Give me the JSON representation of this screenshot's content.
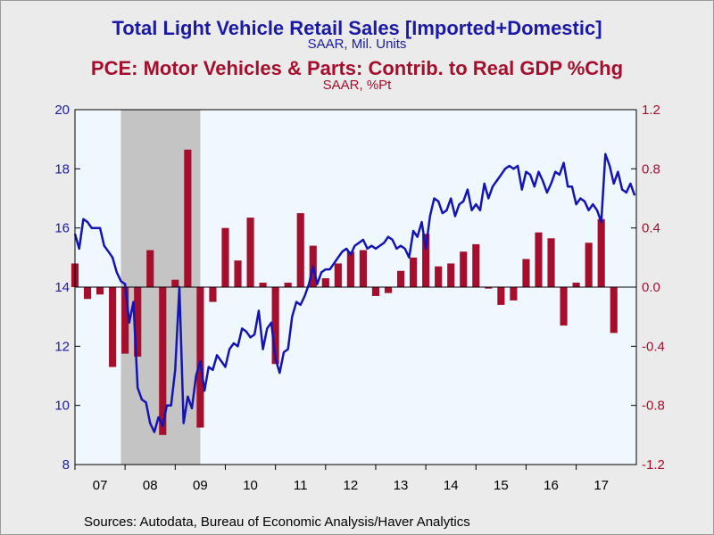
{
  "titles": {
    "line_title": "Total Light Vehicle Retail Sales [Imported+Domestic]",
    "line_subtitle": "SAAR, Mil. Units",
    "bar_title": "PCE: Motor Vehicles & Parts: Contrib. to Real GDP %Chg",
    "bar_subtitle": "SAAR, %Pt"
  },
  "source": "Sources:  Autodata, Bureau of Economic Analysis/Haver Analytics",
  "colors": {
    "line": "#1414b4",
    "bar": "#a50f2d",
    "recession": "#c4c4c4",
    "plot_bg": "#f0f8ff",
    "page_bg": "#ebebeb"
  },
  "chart_data": {
    "type": "bar+line",
    "x_labels": [
      "07",
      "08",
      "09",
      "10",
      "11",
      "12",
      "13",
      "14",
      "15",
      "16",
      "17"
    ],
    "x_range": [
      2007.0,
      2018.2
    ],
    "left_axis": {
      "ticks": [
        "20",
        "18",
        "16",
        "14",
        "12",
        "10",
        "8"
      ],
      "ylim": [
        8,
        20
      ]
    },
    "right_axis": {
      "ticks": [
        "1.2",
        "0.8",
        "0.4",
        "0.0",
        "-0.4",
        "-0.8",
        "-1.2"
      ],
      "ylim": [
        -1.2,
        1.2
      ]
    },
    "recession_shading": [
      2007.917,
      2009.5
    ],
    "bars": {
      "name": "PCE: Motor Vehicles & Parts: Contrib. to Real GDP %Chg",
      "axis": "right",
      "x": [
        2007.0,
        2007.25,
        2007.5,
        2007.75,
        2008.0,
        2008.25,
        2008.5,
        2008.75,
        2009.0,
        2009.25,
        2009.5,
        2009.75,
        2010.0,
        2010.25,
        2010.5,
        2010.75,
        2011.0,
        2011.25,
        2011.5,
        2011.75,
        2012.0,
        2012.25,
        2012.5,
        2012.75,
        2013.0,
        2013.25,
        2013.5,
        2013.75,
        2014.0,
        2014.25,
        2014.5,
        2014.75,
        2015.0,
        2015.25,
        2015.5,
        2015.75,
        2016.0,
        2016.25,
        2016.5,
        2016.75,
        2017.0,
        2017.25,
        2017.5,
        2017.75,
        2018.0
      ],
      "values": [
        0.16,
        -0.08,
        -0.05,
        -0.54,
        -0.45,
        -0.47,
        0.25,
        -1.0,
        0.05,
        0.93,
        -0.95,
        -0.1,
        0.4,
        0.18,
        0.47,
        0.03,
        -0.52,
        0.03,
        0.5,
        0.28,
        0.06,
        0.16,
        0.24,
        0.25,
        -0.06,
        -0.04,
        0.11,
        0.2,
        0.36,
        0.14,
        0.16,
        0.24,
        0.29,
        -0.01,
        -0.12,
        -0.09,
        0.19,
        0.37,
        0.33,
        -0.26,
        0.03,
        0.3,
        0.46,
        -0.31,
        0.0
      ]
    },
    "line": {
      "name": "Total Light Vehicle Retail Sales [Imported+Domestic]",
      "axis": "left",
      "x": [
        2007.0,
        2007.083,
        2007.167,
        2007.25,
        2007.333,
        2007.417,
        2007.5,
        2007.583,
        2007.667,
        2007.75,
        2007.833,
        2007.917,
        2008.0,
        2008.083,
        2008.167,
        2008.25,
        2008.333,
        2008.417,
        2008.5,
        2008.583,
        2008.667,
        2008.75,
        2008.833,
        2008.917,
        2009.0,
        2009.083,
        2009.167,
        2009.25,
        2009.333,
        2009.417,
        2009.5,
        2009.583,
        2009.667,
        2009.75,
        2009.833,
        2009.917,
        2010.0,
        2010.083,
        2010.167,
        2010.25,
        2010.333,
        2010.417,
        2010.5,
        2010.583,
        2010.667,
        2010.75,
        2010.833,
        2010.917,
        2011.0,
        2011.083,
        2011.167,
        2011.25,
        2011.333,
        2011.417,
        2011.5,
        2011.583,
        2011.667,
        2011.75,
        2011.833,
        2011.917,
        2012.0,
        2012.083,
        2012.167,
        2012.25,
        2012.333,
        2012.417,
        2012.5,
        2012.583,
        2012.667,
        2012.75,
        2012.833,
        2012.917,
        2013.0,
        2013.083,
        2013.167,
        2013.25,
        2013.333,
        2013.417,
        2013.5,
        2013.583,
        2013.667,
        2013.75,
        2013.833,
        2013.917,
        2014.0,
        2014.083,
        2014.167,
        2014.25,
        2014.333,
        2014.417,
        2014.5,
        2014.583,
        2014.667,
        2014.75,
        2014.833,
        2014.917,
        2015.0,
        2015.083,
        2015.167,
        2015.25,
        2015.333,
        2015.417,
        2015.5,
        2015.583,
        2015.667,
        2015.75,
        2015.833,
        2015.917,
        2016.0,
        2016.083,
        2016.167,
        2016.25,
        2016.333,
        2016.417,
        2016.5,
        2016.583,
        2016.667,
        2016.75,
        2016.833,
        2016.917,
        2017.0,
        2017.083,
        2017.167,
        2017.25,
        2017.333,
        2017.417,
        2017.5,
        2017.583,
        2017.667,
        2017.75,
        2017.833,
        2017.917,
        2018.0,
        2018.083,
        2018.167
      ],
      "values": [
        15.8,
        15.3,
        16.3,
        16.2,
        16.0,
        16.0,
        16.0,
        15.4,
        15.2,
        15.0,
        14.5,
        14.2,
        14.1,
        12.8,
        13.5,
        10.6,
        10.2,
        10.1,
        9.4,
        9.1,
        9.6,
        9.3,
        10.0,
        10.0,
        11.2,
        14.0,
        9.4,
        10.3,
        9.9,
        11.0,
        11.5,
        10.5,
        11.3,
        11.2,
        11.7,
        11.5,
        11.3,
        11.9,
        12.1,
        12.0,
        12.6,
        12.5,
        12.3,
        12.4,
        13.2,
        11.9,
        12.6,
        12.8,
        11.6,
        11.1,
        11.8,
        11.9,
        13.0,
        13.5,
        13.4,
        13.7,
        14.1,
        14.7,
        14.1,
        14.5,
        14.6,
        14.6,
        14.8,
        15.0,
        15.2,
        15.3,
        15.1,
        15.4,
        15.5,
        15.6,
        15.3,
        15.4,
        15.3,
        15.4,
        15.5,
        15.7,
        15.6,
        15.3,
        15.4,
        15.3,
        15.0,
        15.9,
        15.7,
        16.2,
        15.3,
        16.4,
        17.0,
        16.9,
        16.5,
        16.6,
        17.0,
        16.4,
        16.8,
        16.9,
        17.3,
        16.6,
        16.8,
        16.6,
        17.5,
        17.0,
        17.4,
        17.6,
        17.8,
        18.0,
        18.1,
        18.0,
        18.1,
        17.3,
        17.9,
        17.8,
        17.4,
        17.9,
        17.6,
        17.2,
        17.5,
        17.9,
        17.8,
        18.2,
        17.4,
        17.4,
        16.8,
        17.0,
        16.9,
        16.6,
        16.8,
        16.6,
        16.2,
        18.5,
        18.1,
        17.5,
        17.9,
        17.3,
        17.2,
        17.5,
        17.1
      ]
    }
  }
}
